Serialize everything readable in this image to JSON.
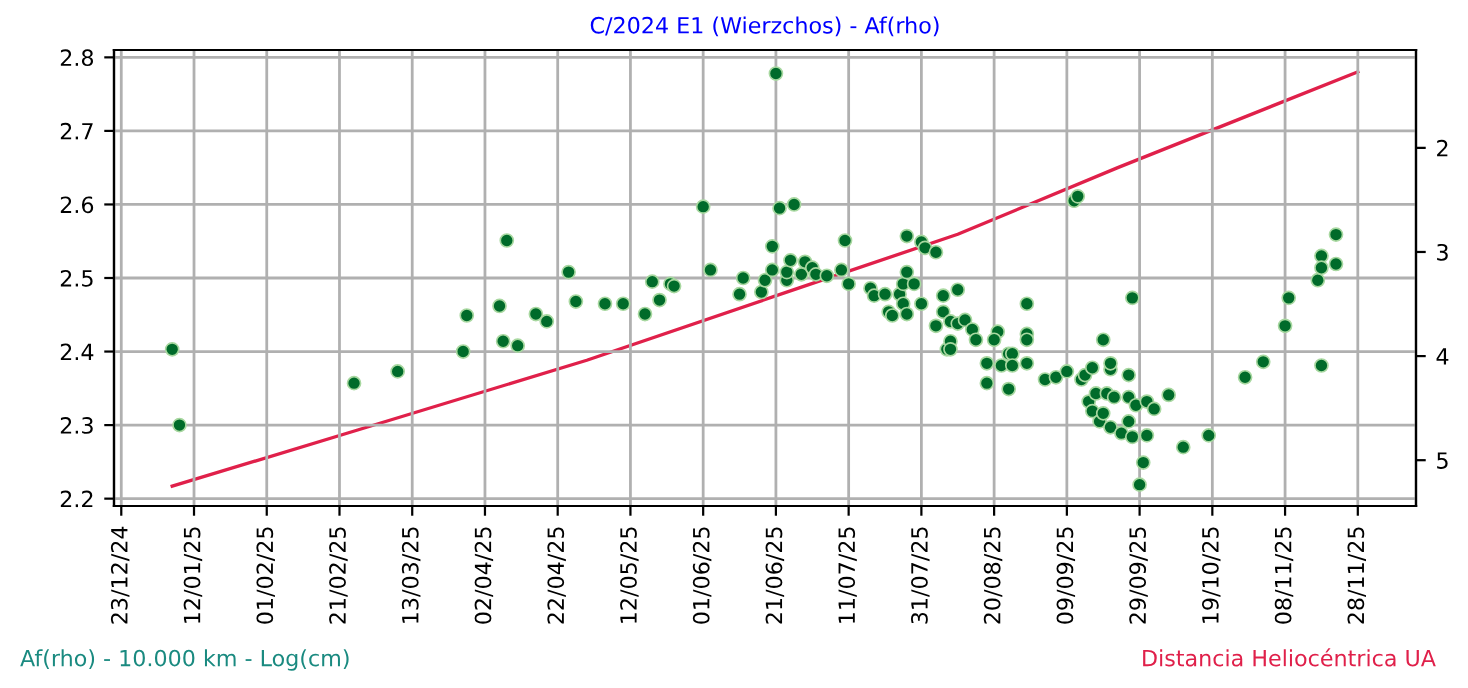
{
  "chart_data": {
    "type": "scatter",
    "title": "C/2024 E1 (Wierzchos) - Af(rho)",
    "annotations": [
      "Af(rho) - 10.000 km - Log(cm)",
      "Distancia Heliocéntrica UA"
    ],
    "xlim": [
      "2024-12-21",
      "2025-12-14"
    ],
    "xticks": [
      {
        "value": "2024-12-23",
        "label": "23/12/24"
      },
      {
        "value": "2025-01-12",
        "label": "12/01/25"
      },
      {
        "value": "2025-02-01",
        "label": "01/02/25"
      },
      {
        "value": "2025-02-21",
        "label": "21/02/25"
      },
      {
        "value": "2025-03-13",
        "label": "13/03/25"
      },
      {
        "value": "2025-04-02",
        "label": "02/04/25"
      },
      {
        "value": "2025-04-22",
        "label": "22/04/25"
      },
      {
        "value": "2025-05-12",
        "label": "12/05/25"
      },
      {
        "value": "2025-06-01",
        "label": "01/06/25"
      },
      {
        "value": "2025-06-21",
        "label": "21/06/25"
      },
      {
        "value": "2025-07-11",
        "label": "11/07/25"
      },
      {
        "value": "2025-07-31",
        "label": "31/07/25"
      },
      {
        "value": "2025-08-20",
        "label": "20/08/25"
      },
      {
        "value": "2025-09-09",
        "label": "09/09/25"
      },
      {
        "value": "2025-09-29",
        "label": "29/09/25"
      },
      {
        "value": "2025-10-19",
        "label": "19/10/25"
      },
      {
        "value": "2025-11-08",
        "label": "08/11/25"
      },
      {
        "value": "2025-11-28",
        "label": "28/11/25"
      }
    ],
    "ylim": [
      2.19,
      2.81
    ],
    "yticks": [
      2.2,
      2.3,
      2.4,
      2.5,
      2.6,
      2.7,
      2.8
    ],
    "y2lim": [
      5.44,
      1.06
    ],
    "y2ticks": [
      2,
      3,
      4,
      5
    ],
    "grid": true,
    "legend": false,
    "series": [
      {
        "marker": "circle",
        "color": "#006b2a",
        "x": [
          "2025-01-06",
          "2025-01-08",
          "2025-02-25",
          "2025-03-09",
          "2025-03-28",
          "2025-03-27",
          "2025-04-06",
          "2025-04-08",
          "2025-04-07",
          "2025-04-11",
          "2025-04-16",
          "2025-04-19",
          "2025-04-25",
          "2025-04-27",
          "2025-05-05",
          "2025-05-10",
          "2025-05-16",
          "2025-05-18",
          "2025-05-20",
          "2025-05-23",
          "2025-05-24",
          "2025-06-01",
          "2025-06-03",
          "2025-06-11",
          "2025-06-12",
          "2025-06-17",
          "2025-06-18",
          "2025-06-20",
          "2025-06-21",
          "2025-06-20",
          "2025-06-22",
          "2025-06-24",
          "2025-06-24",
          "2025-06-26",
          "2025-06-25",
          "2025-06-28",
          "2025-06-29",
          "2025-07-01",
          "2025-07-02",
          "2025-07-05",
          "2025-07-09",
          "2025-07-10",
          "2025-07-11",
          "2025-07-17",
          "2025-07-18",
          "2025-07-21",
          "2025-07-22",
          "2025-07-23",
          "2025-07-25",
          "2025-07-26",
          "2025-07-26",
          "2025-07-27",
          "2025-07-27",
          "2025-07-27",
          "2025-07-29",
          "2025-07-31",
          "2025-07-31",
          "2025-08-01",
          "2025-08-04",
          "2025-08-04",
          "2025-08-06",
          "2025-08-06",
          "2025-08-07",
          "2025-08-08",
          "2025-08-08",
          "2025-08-08",
          "2025-08-10",
          "2025-08-10",
          "2025-08-12",
          "2025-08-14",
          "2025-08-15",
          "2025-08-18",
          "2025-08-18",
          "2025-08-21",
          "2025-08-20",
          "2025-08-22",
          "2025-08-24",
          "2025-08-24",
          "2025-08-25",
          "2025-08-25",
          "2025-08-29",
          "2025-08-29",
          "2025-08-29",
          "2025-08-29",
          "2025-09-03",
          "2025-09-06",
          "2025-09-09",
          "2025-09-11",
          "2025-09-12",
          "2025-09-13",
          "2025-09-14",
          "2025-09-16",
          "2025-09-15",
          "2025-09-16",
          "2025-09-17",
          "2025-09-18",
          "2025-09-19",
          "2025-09-19",
          "2025-09-20",
          "2025-09-21",
          "2025-09-21",
          "2025-09-21",
          "2025-09-22",
          "2025-09-24",
          "2025-09-26",
          "2025-09-26",
          "2025-09-27",
          "2025-09-26",
          "2025-09-28",
          "2025-09-27",
          "2025-09-29",
          "2025-09-30",
          "2025-10-01",
          "2025-10-01",
          "2025-10-03",
          "2025-10-07",
          "2025-10-11",
          "2025-10-18",
          "2025-10-28",
          "2025-11-02",
          "2025-11-08",
          "2025-11-09",
          "2025-11-17",
          "2025-11-18",
          "2025-11-18",
          "2025-11-18",
          "2025-11-22",
          "2025-11-22"
        ],
        "values": [
          2.403,
          2.3,
          2.357,
          2.373,
          2.449,
          2.4,
          2.462,
          2.551,
          2.414,
          2.408,
          2.451,
          2.441,
          2.508,
          2.468,
          2.465,
          2.465,
          2.451,
          2.495,
          2.47,
          2.492,
          2.489,
          2.597,
          2.511,
          2.478,
          2.5,
          2.481,
          2.497,
          2.543,
          2.778,
          2.511,
          2.595,
          2.497,
          2.508,
          2.6,
          2.524,
          2.505,
          2.522,
          2.514,
          2.505,
          2.503,
          2.511,
          2.551,
          2.492,
          2.486,
          2.476,
          2.478,
          2.454,
          2.449,
          2.478,
          2.492,
          2.465,
          2.451,
          2.508,
          2.557,
          2.492,
          2.465,
          2.549,
          2.541,
          2.535,
          2.435,
          2.476,
          2.454,
          2.403,
          2.414,
          2.441,
          2.403,
          2.484,
          2.438,
          2.443,
          2.43,
          2.416,
          2.357,
          2.384,
          2.427,
          2.416,
          2.381,
          2.397,
          2.349,
          2.397,
          2.381,
          2.465,
          2.424,
          2.416,
          2.384,
          2.362,
          2.365,
          2.373,
          2.605,
          2.611,
          2.362,
          2.368,
          2.378,
          2.332,
          2.319,
          2.343,
          2.305,
          2.316,
          2.416,
          2.343,
          2.376,
          2.384,
          2.297,
          2.338,
          2.289,
          2.338,
          2.368,
          2.473,
          2.305,
          2.327,
          2.284,
          2.219,
          2.249,
          2.332,
          2.286,
          2.322,
          2.341,
          2.27,
          2.286,
          2.365,
          2.386,
          2.435,
          2.473,
          2.497,
          2.53,
          2.514,
          2.381,
          2.559,
          2.519
        ]
      },
      {
        "type": "line",
        "axis": "y2",
        "color": "#e0204a",
        "marker": "none",
        "line_style": "solid",
        "x": [
          "2025-01-06",
          "2025-02-26",
          "2025-04-30",
          "2025-06-27",
          "2025-08-10",
          "2025-09-23",
          "2025-11-28"
        ],
        "values": [
          5.25,
          4.71,
          4.04,
          3.35,
          2.83,
          2.19,
          1.27
        ]
      }
    ]
  }
}
